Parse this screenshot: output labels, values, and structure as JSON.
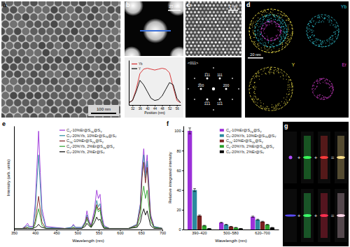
{
  "panels": {
    "labels": [
      "a",
      "b",
      "c",
      "d",
      "e",
      "f",
      "g"
    ],
    "a": {
      "scale_bar": "100 nm"
    },
    "b": {
      "scale_bar": "25 nm"
    },
    "c": {
      "scale_bar": "2 nm",
      "zone_axis": "<011>",
      "spots": [
        "111",
        "200",
        "1̅11",
        "1̅1̅1",
        "2̅00",
        "11̅1"
      ]
    },
    "d": {
      "scale_bar": "20 nm",
      "channels": [
        "Yb",
        "Y",
        "Er"
      ]
    },
    "g": {
      "operators": [
        [
          "+",
          "+",
          "="
        ],
        [
          "+",
          "+",
          "="
        ]
      ]
    }
  },
  "chart_data": [
    {
      "type": "line",
      "x_label": "Position (nm)",
      "x": [
        30,
        32,
        34,
        36,
        38,
        40,
        42,
        44,
        46,
        48,
        50,
        52,
        54,
        56,
        58
      ],
      "xlim": [
        30,
        58
      ],
      "xticks": [
        32,
        36,
        40,
        44,
        48,
        52,
        56
      ],
      "ylim": [
        0,
        1
      ],
      "tick_labels": "x",
      "legend": "upper left",
      "series": [
        {
          "name": "Yb",
          "color": "#d62728",
          "values": [
            0.05,
            0.1,
            0.35,
            0.7,
            0.8,
            0.82,
            0.8,
            0.78,
            0.8,
            0.82,
            0.8,
            0.72,
            0.4,
            0.1,
            0.05
          ]
        },
        {
          "name": "Y",
          "color": "#000000",
          "values": [
            0.05,
            0.1,
            0.3,
            0.55,
            0.45,
            0.3,
            0.15,
            0.1,
            0.12,
            0.2,
            0.35,
            0.5,
            0.45,
            0.15,
            0.05
          ]
        }
      ]
    },
    {
      "type": "line",
      "x_label": "Wavelength (nm)",
      "y_label": "Intensity (arb. units)",
      "x": [
        350,
        370,
        378,
        382,
        386,
        395,
        400,
        404,
        408,
        412,
        416,
        425,
        470,
        485,
        490,
        495,
        510,
        518,
        522,
        526,
        532,
        540,
        545,
        549,
        553,
        557,
        562,
        575,
        620,
        640,
        648,
        652,
        656,
        660,
        664,
        668,
        672,
        680,
        700
      ],
      "xlim": [
        350,
        700
      ],
      "xticks": [
        350,
        400,
        450,
        500,
        550,
        600,
        650,
        700
      ],
      "ylim": [
        0,
        1
      ],
      "tick_labels": "x",
      "legend": "upper center",
      "series": [
        {
          "name": "CY-10%Er@SYb@SY",
          "color": "#9b30d9",
          "values": [
            0.01,
            0.01,
            0.04,
            0.06,
            0.03,
            0.03,
            0.25,
            0.6,
            0.95,
            0.55,
            0.2,
            0.03,
            0.01,
            0.02,
            0.05,
            0.02,
            0.02,
            0.08,
            0.18,
            0.1,
            0.04,
            0.2,
            0.38,
            0.3,
            0.34,
            0.15,
            0.04,
            0.01,
            0.01,
            0.05,
            0.25,
            0.6,
            0.78,
            0.55,
            0.72,
            0.45,
            0.15,
            0.03,
            0.01
          ]
        },
        {
          "name": "CY-20%Yb, 10%Er@SYb@SY",
          "color": "#2b8a9e",
          "values": [
            0.01,
            0.01,
            0.03,
            0.04,
            0.02,
            0.02,
            0.18,
            0.45,
            0.72,
            0.42,
            0.15,
            0.02,
            0.01,
            0.02,
            0.04,
            0.02,
            0.02,
            0.07,
            0.14,
            0.08,
            0.03,
            0.15,
            0.28,
            0.22,
            0.25,
            0.11,
            0.03,
            0.01,
            0.01,
            0.05,
            0.24,
            0.55,
            0.72,
            0.5,
            0.66,
            0.4,
            0.13,
            0.03,
            0.01
          ]
        },
        {
          "name": "CYb-10%Er@SYb@SY",
          "color": "#7a1f1f",
          "values": [
            0.01,
            0.01,
            0.02,
            0.02,
            0.01,
            0.01,
            0.08,
            0.2,
            0.32,
            0.19,
            0.07,
            0.01,
            0.01,
            0.01,
            0.02,
            0.01,
            0.01,
            0.06,
            0.12,
            0.07,
            0.03,
            0.14,
            0.24,
            0.19,
            0.21,
            0.09,
            0.02,
            0.01,
            0.01,
            0.04,
            0.2,
            0.5,
            0.65,
            0.45,
            0.6,
            0.36,
            0.12,
            0.02,
            0.01
          ]
        },
        {
          "name": "CY-20%Yb, 2%Er@SYb@SY",
          "color": "#2ca02c",
          "values": [
            0.01,
            0.01,
            0.01,
            0.02,
            0.01,
            0.01,
            0.05,
            0.13,
            0.2,
            0.12,
            0.04,
            0.01,
            0.01,
            0.01,
            0.02,
            0.01,
            0.01,
            0.05,
            0.1,
            0.06,
            0.02,
            0.12,
            0.22,
            0.17,
            0.19,
            0.08,
            0.02,
            0.01,
            0.01,
            0.03,
            0.13,
            0.32,
            0.42,
            0.3,
            0.38,
            0.23,
            0.08,
            0.02,
            0.01
          ]
        },
        {
          "name": "CY-20%Yb, 2%Er@SY",
          "color": "#000000",
          "values": [
            0.01,
            0.01,
            0.01,
            0.01,
            0.01,
            0.01,
            0.02,
            0.03,
            0.05,
            0.03,
            0.02,
            0.01,
            0.01,
            0.01,
            0.01,
            0.01,
            0.01,
            0.03,
            0.06,
            0.04,
            0.02,
            0.07,
            0.12,
            0.09,
            0.1,
            0.05,
            0.01,
            0.01,
            0.01,
            0.02,
            0.07,
            0.15,
            0.2,
            0.14,
            0.18,
            0.11,
            0.04,
            0.01,
            0.01
          ]
        }
      ]
    },
    {
      "type": "bar",
      "x_label": "Wavelength (nm)",
      "y_label": "Relative integrated intensity",
      "categories": [
        "390–420",
        "500–580",
        "620–700"
      ],
      "ylim": [
        0,
        105
      ],
      "yticks": [
        0,
        20,
        40,
        60,
        80,
        100
      ],
      "legend": "upper right",
      "series": [
        {
          "name": "CY-10%Er@SYb@SY",
          "color": "#9b30d9",
          "values": [
            100,
            7,
            13
          ],
          "errors": [
            3,
            0.4,
            0.6
          ]
        },
        {
          "name": "CY-20%Yb, 10%Er@SYb@SY",
          "color": "#2b8a9e",
          "values": [
            40,
            5,
            10
          ],
          "errors": [
            1.5,
            0.3,
            0.5
          ]
        },
        {
          "name": "CYb-10%Er@SYb@SY",
          "color": "#7a1f1f",
          "values": [
            14,
            3,
            8
          ],
          "errors": [
            0.8,
            0.2,
            0.4
          ]
        },
        {
          "name": "CY-20%Yb, 2%Er@SYb@SY",
          "color": "#2ca02c",
          "values": [
            4,
            2,
            5
          ],
          "errors": [
            0.3,
            0.1,
            0.3
          ]
        },
        {
          "name": "CY-20%Yb, 2%Er@SY",
          "color": "#000000",
          "values": [
            1,
            1,
            2
          ],
          "errors": [
            0.1,
            0.1,
            0.1
          ]
        }
      ]
    }
  ]
}
